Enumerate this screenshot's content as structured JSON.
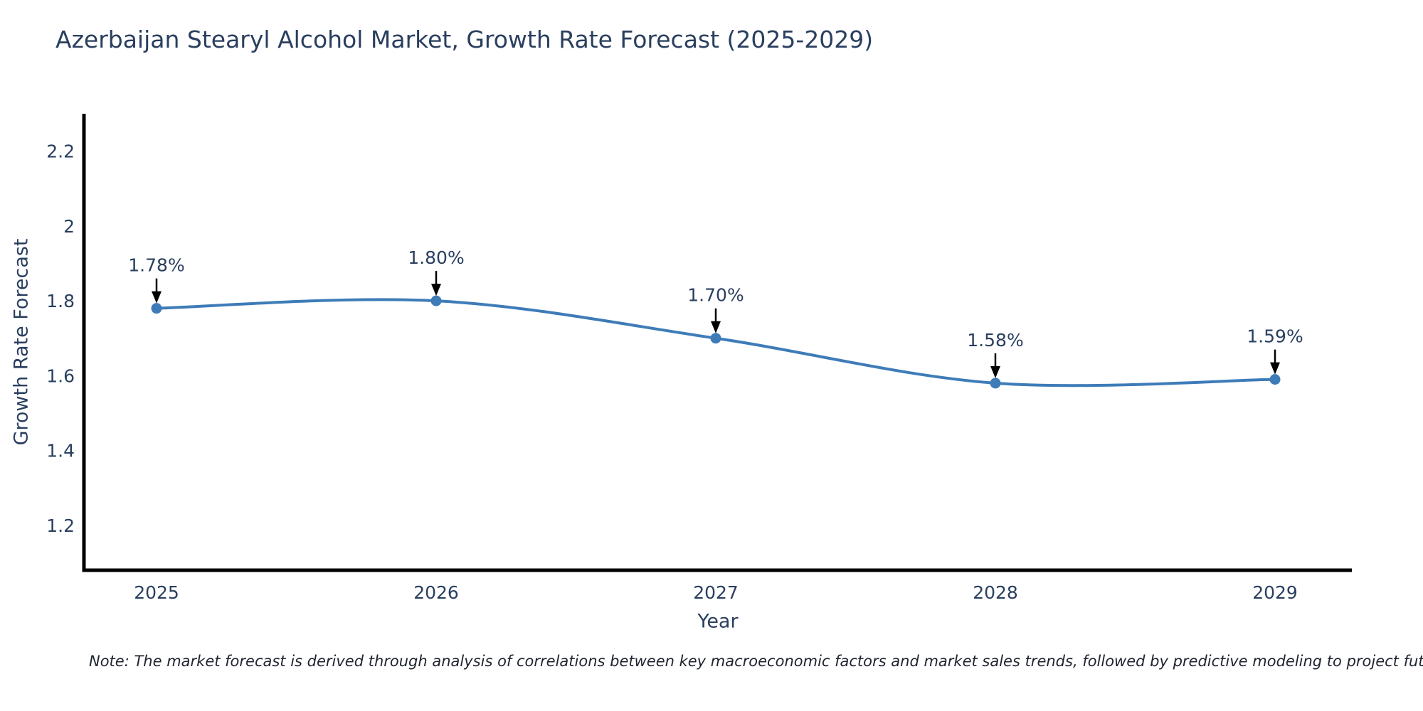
{
  "header": {
    "title": "Azerbaijan Stearyl Alcohol Market, Growth Rate Forecast (2025-2029)"
  },
  "footnote": {
    "text": "Note: The market forecast is derived through analysis of correlations between key macroeconomic factors and market sales trends, followed by predictive modeling to project future sales"
  },
  "colors": {
    "line": "#3e7cb8",
    "marker": "#3e7cb8",
    "axis": "#000000",
    "text": "#2a3f5f",
    "annotation_arrow": "#000000",
    "background": "#ffffff"
  },
  "chart_data": {
    "type": "line",
    "title": "Azerbaijan Stearyl Alcohol Market, Growth Rate Forecast (2025-2029)",
    "xlabel": "Year",
    "ylabel": "Growth Rate Forecast",
    "x": [
      2025,
      2026,
      2027,
      2028,
      2029
    ],
    "series": [
      {
        "name": "Growth Rate Forecast",
        "values": [
          1.78,
          1.8,
          1.7,
          1.58,
          1.59
        ],
        "point_labels": [
          "1.78%",
          "1.80%",
          "1.70%",
          "1.58%",
          "1.59%"
        ]
      }
    ],
    "line_shape": "spline",
    "markers": true,
    "annotations_with_arrows": true,
    "yticks": [
      1.2,
      1.4,
      1.6,
      1.8,
      2,
      2.2
    ],
    "ylim": [
      1.08,
      2.3
    ],
    "grid": false,
    "legend_position": "none"
  }
}
